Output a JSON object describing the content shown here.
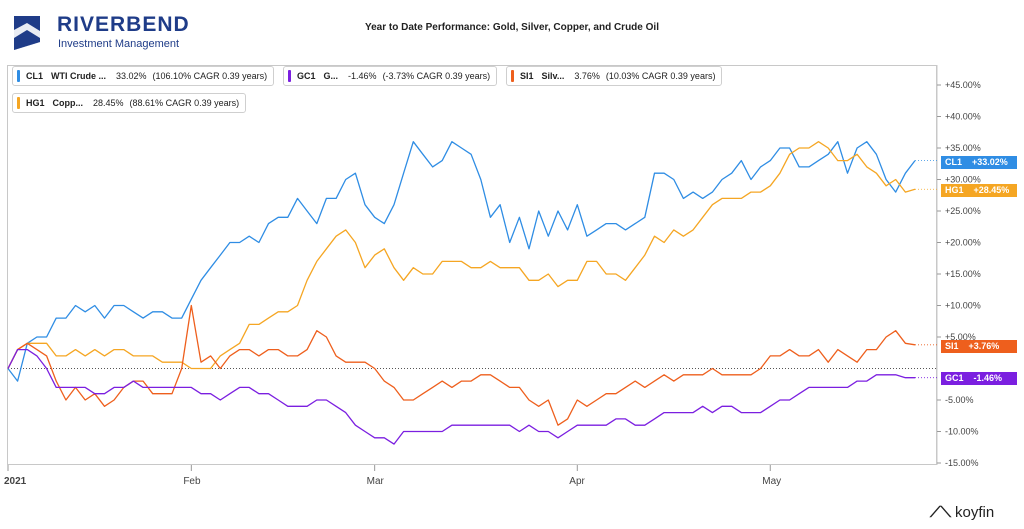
{
  "logo": {
    "name": "RIVERBEND",
    "sub": "Investment Management"
  },
  "title": "Year to Date Performance: Gold, Silver, Copper, and Crude Oil",
  "branding": {
    "mark": "⟋⟍",
    "text": "koyfin"
  },
  "colors": {
    "CL1": "#2f8de4",
    "HG1": "#f5a623",
    "SI1": "#ee5f1d",
    "GC1": "#7b1fe0"
  },
  "legend": [
    {
      "ticker": "CL1",
      "name": "WTI Crude ...",
      "pct": "33.02%",
      "cagr": "(106.10% CAGR 0.39 years)"
    },
    {
      "ticker": "GC1",
      "name": "G...",
      "pct": "-1.46%",
      "cagr": "(-3.73% CAGR 0.39 years)"
    },
    {
      "ticker": "SI1",
      "name": "Silv...",
      "pct": "3.76%",
      "cagr": "(10.03% CAGR 0.39 years)"
    },
    {
      "ticker": "HG1",
      "name": "Copp...",
      "pct": "28.45%",
      "cagr": "(88.61% CAGR 0.39 years)"
    }
  ],
  "tags": [
    {
      "ticker": "CL1",
      "value": "+33.02%"
    },
    {
      "ticker": "HG1",
      "value": "+28.45%"
    },
    {
      "ticker": "SI1",
      "value": "+3.76%"
    },
    {
      "ticker": "GC1",
      "value": "-1.46%"
    }
  ],
  "chart_data": {
    "type": "line",
    "ylim": [
      -15,
      47
    ],
    "y_ticks": [
      "+45.00%",
      "+40.00%",
      "+35.00%",
      "+30.00%",
      "+25.00%",
      "+20.00%",
      "+15.00%",
      "+10.00%",
      "+5.00%",
      "-5.00%",
      "-10.00%",
      "-15.00%"
    ],
    "y_tick_values": [
      45,
      40,
      35,
      30,
      25,
      20,
      15,
      10,
      5,
      -5,
      -10,
      -15
    ],
    "x_ticks": [
      "2021",
      "Feb",
      "Mar",
      "Apr",
      "May"
    ],
    "x_tick_index": [
      0,
      19,
      38,
      59,
      79
    ],
    "n_points": 95,
    "grid": false,
    "baseline": 0,
    "series": [
      {
        "name": "CL1",
        "values": [
          0,
          -2,
          4,
          5,
          5,
          8,
          8,
          10,
          9,
          10,
          8,
          10,
          10,
          9,
          8,
          9,
          9,
          8,
          8,
          11,
          14,
          16,
          18,
          20,
          20,
          21,
          20,
          23,
          24,
          24,
          27,
          25,
          23,
          27,
          27,
          30,
          31,
          26,
          24,
          23,
          26,
          31,
          36,
          34,
          32,
          33,
          36,
          35,
          34,
          30,
          24,
          26,
          20,
          24,
          19,
          25,
          21,
          25,
          22,
          26,
          21,
          22,
          23,
          23,
          22,
          23,
          24,
          31,
          31,
          30,
          27,
          28,
          27,
          28,
          30,
          31,
          33,
          30,
          32,
          33,
          35,
          35,
          32,
          32,
          33,
          34,
          36,
          31,
          35,
          36,
          34,
          30,
          28,
          31,
          33
        ]
      },
      {
        "name": "HG1",
        "values": [
          0,
          3,
          4,
          4,
          4,
          2,
          2,
          3,
          2,
          3,
          2,
          3,
          3,
          2,
          2,
          2,
          1,
          1,
          1,
          0,
          0,
          0,
          2,
          3,
          4,
          7,
          7,
          8,
          9,
          9,
          10,
          14,
          17,
          19,
          21,
          22,
          20,
          16,
          18,
          19,
          16,
          14,
          16,
          15,
          15,
          17,
          17,
          17,
          16,
          16,
          17,
          16,
          16,
          16,
          14,
          14,
          15,
          13,
          14,
          14,
          17,
          17,
          15,
          15,
          14,
          16,
          18,
          21,
          20,
          22,
          21,
          22,
          24,
          26,
          27,
          27,
          27,
          28,
          28,
          29,
          31,
          34,
          35,
          35,
          36,
          35,
          33,
          33,
          34,
          32,
          31,
          29,
          30,
          28,
          28.45
        ]
      },
      {
        "name": "SI1",
        "values": [
          0,
          3,
          4,
          3,
          2,
          -2,
          -5,
          -3,
          -5,
          -4,
          -6,
          -5,
          -3,
          -2,
          -2,
          -4,
          -4,
          -4,
          0,
          10,
          1,
          2,
          0,
          2,
          3,
          3,
          2,
          3,
          3,
          2,
          2,
          3,
          6,
          5,
          2,
          1,
          1,
          1,
          0,
          -2,
          -3,
          -5,
          -5,
          -4,
          -3,
          -2,
          -3,
          -2,
          -2,
          -1,
          -1,
          -2,
          -3,
          -3,
          -5,
          -6,
          -5,
          -9,
          -8,
          -5,
          -6,
          -5,
          -4,
          -4,
          -3,
          -2,
          -3,
          -2,
          -1,
          -2,
          -1,
          -1,
          -1,
          0,
          -1,
          -1,
          -1,
          -1,
          0,
          2,
          2,
          3,
          2,
          2,
          3,
          1,
          3,
          2,
          1,
          3,
          3,
          5,
          6,
          4,
          3.76
        ]
      },
      {
        "name": "GC1",
        "values": [
          0,
          3,
          3,
          2,
          0,
          -3,
          -3,
          -3,
          -3,
          -4,
          -4,
          -3,
          -3,
          -2,
          -3,
          -3,
          -3,
          -3,
          -3,
          -3,
          -4,
          -4,
          -5,
          -4,
          -3,
          -3,
          -4,
          -4,
          -5,
          -6,
          -6,
          -6,
          -5,
          -5,
          -6,
          -7,
          -9,
          -10,
          -11,
          -11,
          -12,
          -10,
          -10,
          -10,
          -10,
          -10,
          -9,
          -9,
          -9,
          -9,
          -9,
          -9,
          -9,
          -10,
          -9,
          -10,
          -10,
          -11,
          -10,
          -9,
          -9,
          -9,
          -9,
          -8,
          -8,
          -9,
          -9,
          -8,
          -7,
          -7,
          -7,
          -7,
          -6,
          -7,
          -6,
          -6,
          -7,
          -7,
          -7,
          -6,
          -5,
          -5,
          -4,
          -3,
          -3,
          -3,
          -3,
          -3,
          -2,
          -2,
          -1,
          -1,
          -1,
          -1.46,
          -1.46
        ]
      }
    ]
  }
}
